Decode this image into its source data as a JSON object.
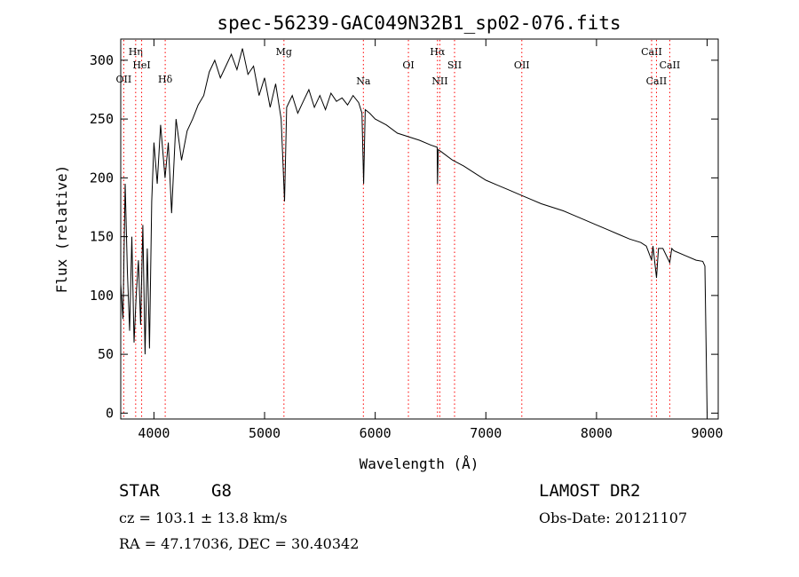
{
  "chart_data": {
    "type": "line",
    "title": "spec-56239-GAC049N32B1_sp02-076.fits",
    "xlabel": "Wavelength (Å)",
    "ylabel": "Flux (relative)",
    "xlim": [
      3700,
      9100
    ],
    "ylim": [
      -5,
      318
    ],
    "x_ticks": [
      4000,
      5000,
      6000,
      7000,
      8000,
      9000
    ],
    "y_ticks": [
      0,
      50,
      100,
      150,
      200,
      250,
      300
    ],
    "grid": false,
    "line_color": "#000000",
    "marker_color": "#ff0000",
    "series": [
      {
        "x": [
          3700,
          3720,
          3740,
          3760,
          3780,
          3800,
          3820,
          3840,
          3860,
          3880,
          3900,
          3920,
          3940,
          3960,
          3980,
          4000,
          4030,
          4060,
          4100,
          4130,
          4160,
          4200,
          4250,
          4300,
          4350,
          4400,
          4450,
          4500,
          4550,
          4600,
          4650,
          4700,
          4750,
          4800,
          4850,
          4900,
          4950,
          5000,
          5050,
          5100,
          5150,
          5180,
          5200,
          5250,
          5300,
          5350,
          5400,
          5450,
          5500,
          5550,
          5600,
          5650,
          5700,
          5750,
          5800,
          5850,
          5880,
          5895,
          5910,
          5950,
          6000,
          6100,
          6200,
          6300,
          6400,
          6500,
          6560,
          6563,
          6570,
          6600,
          6700,
          6800,
          6900,
          7000,
          7100,
          7200,
          7300,
          7400,
          7500,
          7600,
          7700,
          7800,
          7900,
          8000,
          8100,
          8200,
          8300,
          8400,
          8450,
          8498,
          8510,
          8542,
          8560,
          8600,
          8662,
          8680,
          8700,
          8800,
          8900,
          8960,
          8980,
          8990,
          9000
        ],
        "y": [
          110,
          80,
          195,
          120,
          70,
          150,
          60,
          100,
          130,
          75,
          160,
          50,
          140,
          55,
          180,
          230,
          195,
          245,
          200,
          230,
          170,
          250,
          215,
          240,
          250,
          262,
          270,
          290,
          300,
          285,
          295,
          305,
          292,
          310,
          288,
          295,
          270,
          285,
          260,
          280,
          250,
          180,
          260,
          270,
          255,
          265,
          275,
          260,
          270,
          258,
          272,
          265,
          268,
          262,
          270,
          264,
          255,
          195,
          258,
          255,
          250,
          245,
          238,
          235,
          232,
          228,
          226,
          195,
          224,
          222,
          215,
          210,
          204,
          198,
          194,
          190,
          186,
          182,
          178,
          175,
          172,
          168,
          164,
          160,
          156,
          152,
          148,
          145,
          142,
          130,
          142,
          115,
          140,
          140,
          128,
          140,
          138,
          134,
          130,
          129,
          125,
          60,
          0
        ]
      }
    ],
    "lines": [
      {
        "label": "OII",
        "x": 3727
      },
      {
        "label": "Hη",
        "x": 3835
      },
      {
        "label": "HeI",
        "x": 3889
      },
      {
        "label": "Hδ",
        "x": 4102
      },
      {
        "label": "Mg",
        "x": 5175
      },
      {
        "label": "Na",
        "x": 5893
      },
      {
        "label": "OI",
        "x": 6300
      },
      {
        "label": "Hα",
        "x": 6563
      },
      {
        "label": "NII",
        "x": 6584
      },
      {
        "label": "SII",
        "x": 6717
      },
      {
        "label": "OII",
        "x": 7325
      },
      {
        "label": "CaII",
        "x": 8498
      },
      {
        "label": "CaII",
        "x": 8542
      },
      {
        "label": "CaII",
        "x": 8662
      }
    ]
  },
  "info": {
    "obj_class": "STAR",
    "subclass": "G8",
    "survey": "LAMOST DR2",
    "cz": "cz = 103.1 ± 13.8 km/s",
    "obs_date": "Obs-Date: 20121107",
    "coords": "RA =  47.17036, DEC =  30.40342"
  }
}
